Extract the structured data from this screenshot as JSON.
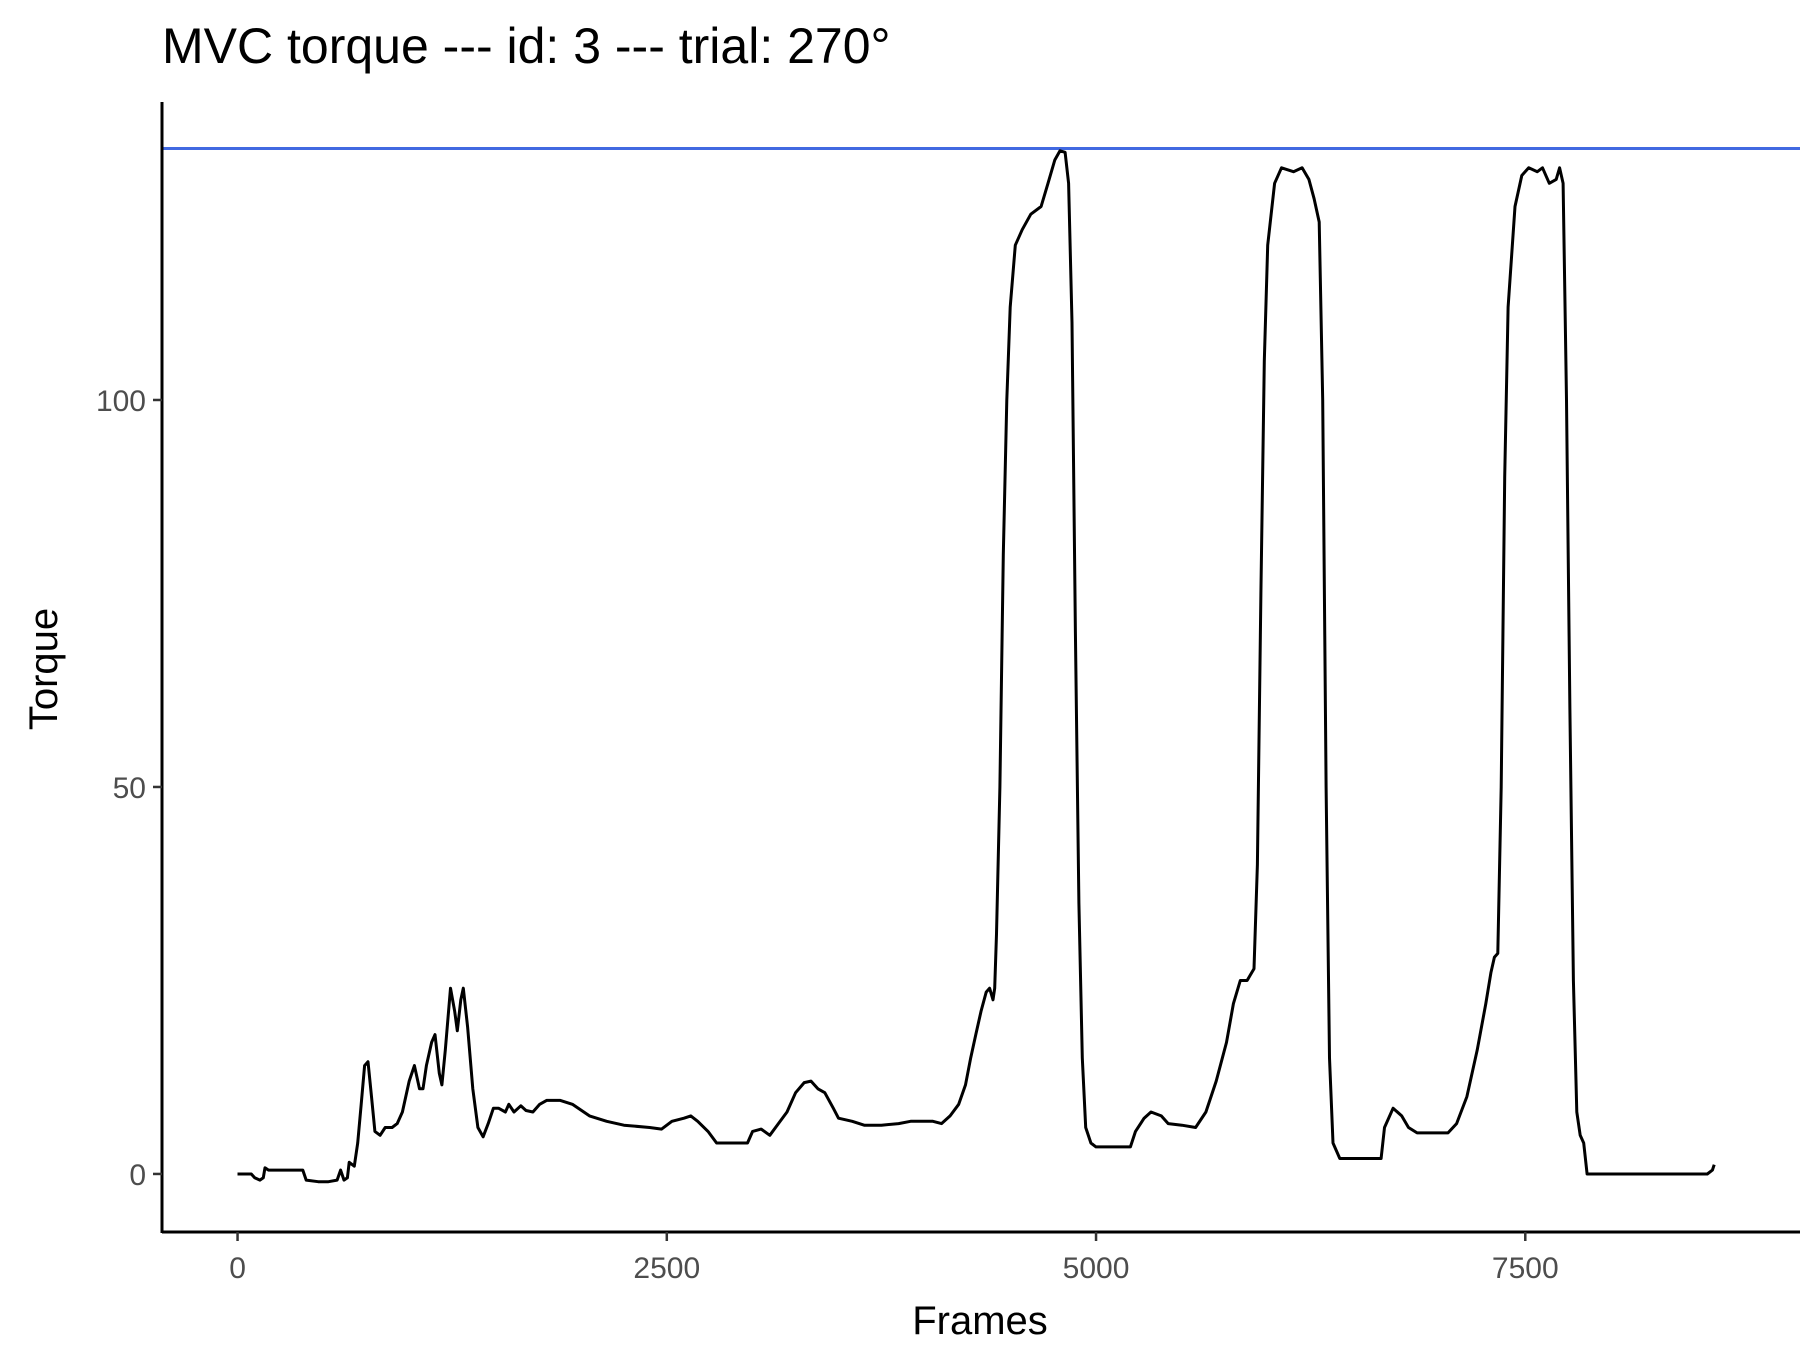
{
  "chart_data": {
    "type": "line",
    "title": "MVC torque --- id: 3 --- trial: 270°",
    "xlabel": "Frames",
    "ylabel": "Torque",
    "xlim": [
      -440,
      9100
    ],
    "ylim": [
      -7.5,
      138.5
    ],
    "x_ticks": [
      0,
      2500,
      5000,
      7500
    ],
    "y_ticks": [
      0,
      50,
      100
    ],
    "grid": false,
    "legend": "none",
    "reference_line": {
      "y": 132.5,
      "color": "#4169E1"
    },
    "series": [
      {
        "color": "#000000",
        "points": [
          [
            0,
            0
          ],
          [
            80,
            0
          ],
          [
            100,
            -0.5
          ],
          [
            130,
            -0.8
          ],
          [
            150,
            -0.5
          ],
          [
            160,
            0.8
          ],
          [
            180,
            0.5
          ],
          [
            230,
            0.5
          ],
          [
            300,
            0.5
          ],
          [
            380,
            0.5
          ],
          [
            400,
            -0.8
          ],
          [
            470,
            -1.0
          ],
          [
            530,
            -1.0
          ],
          [
            580,
            -0.8
          ],
          [
            600,
            0.5
          ],
          [
            620,
            -0.8
          ],
          [
            640,
            -0.5
          ],
          [
            650,
            1.5
          ],
          [
            680,
            1.0
          ],
          [
            700,
            4.0
          ],
          [
            720,
            9.0
          ],
          [
            740,
            14.0
          ],
          [
            760,
            14.5
          ],
          [
            780,
            10.0
          ],
          [
            800,
            5.5
          ],
          [
            830,
            5.0
          ],
          [
            860,
            6.0
          ],
          [
            900,
            6.0
          ],
          [
            930,
            6.5
          ],
          [
            960,
            8.0
          ],
          [
            1000,
            12.0
          ],
          [
            1030,
            14.0
          ],
          [
            1060,
            11.0
          ],
          [
            1080,
            11.0
          ],
          [
            1100,
            14.0
          ],
          [
            1130,
            17.0
          ],
          [
            1150,
            18.0
          ],
          [
            1175,
            13.0
          ],
          [
            1190,
            11.5
          ],
          [
            1210,
            16.0
          ],
          [
            1240,
            24.0
          ],
          [
            1265,
            21.0
          ],
          [
            1280,
            18.5
          ],
          [
            1300,
            22.5
          ],
          [
            1315,
            24.0
          ],
          [
            1340,
            19.0
          ],
          [
            1370,
            11.0
          ],
          [
            1400,
            6.0
          ],
          [
            1430,
            4.8
          ],
          [
            1460,
            6.5
          ],
          [
            1490,
            8.5
          ],
          [
            1520,
            8.5
          ],
          [
            1560,
            8.0
          ],
          [
            1580,
            9.0
          ],
          [
            1610,
            8.0
          ],
          [
            1650,
            8.8
          ],
          [
            1680,
            8.2
          ],
          [
            1720,
            8.0
          ],
          [
            1760,
            9.0
          ],
          [
            1800,
            9.5
          ],
          [
            1880,
            9.5
          ],
          [
            1950,
            9.0
          ],
          [
            2050,
            7.5
          ],
          [
            2150,
            6.8
          ],
          [
            2250,
            6.3
          ],
          [
            2400,
            6.0
          ],
          [
            2470,
            5.8
          ],
          [
            2530,
            6.8
          ],
          [
            2600,
            7.2
          ],
          [
            2640,
            7.5
          ],
          [
            2680,
            6.8
          ],
          [
            2740,
            5.5
          ],
          [
            2790,
            4.0
          ],
          [
            2850,
            4.0
          ],
          [
            2920,
            4.0
          ],
          [
            2970,
            4.0
          ],
          [
            3000,
            5.5
          ],
          [
            3050,
            5.8
          ],
          [
            3100,
            5.0
          ],
          [
            3150,
            6.5
          ],
          [
            3200,
            8.0
          ],
          [
            3250,
            10.5
          ],
          [
            3300,
            11.8
          ],
          [
            3340,
            12.0
          ],
          [
            3380,
            11.0
          ],
          [
            3420,
            10.5
          ],
          [
            3470,
            8.5
          ],
          [
            3500,
            7.2
          ],
          [
            3580,
            6.8
          ],
          [
            3650,
            6.3
          ],
          [
            3750,
            6.3
          ],
          [
            3850,
            6.5
          ],
          [
            3920,
            6.8
          ],
          [
            3980,
            6.8
          ],
          [
            4050,
            6.8
          ],
          [
            4100,
            6.5
          ],
          [
            4150,
            7.5
          ],
          [
            4200,
            9.0
          ],
          [
            4240,
            11.5
          ],
          [
            4270,
            15.0
          ],
          [
            4300,
            18.0
          ],
          [
            4330,
            21.0
          ],
          [
            4360,
            23.5
          ],
          [
            4380,
            24.0
          ],
          [
            4400,
            22.5
          ],
          [
            4410,
            24.0
          ],
          [
            4420,
            31.0
          ],
          [
            4440,
            50.0
          ],
          [
            4460,
            80.0
          ],
          [
            4480,
            100.0
          ],
          [
            4500,
            112.0
          ],
          [
            4530,
            120.0
          ],
          [
            4570,
            122.0
          ],
          [
            4620,
            124.0
          ],
          [
            4680,
            125.0
          ],
          [
            4720,
            128.0
          ],
          [
            4760,
            131.0
          ],
          [
            4790,
            132.2
          ],
          [
            4820,
            132.0
          ],
          [
            4840,
            128.0
          ],
          [
            4860,
            110.0
          ],
          [
            4880,
            70.0
          ],
          [
            4900,
            35.0
          ],
          [
            4920,
            15.0
          ],
          [
            4940,
            6.0
          ],
          [
            4970,
            4.0
          ],
          [
            5000,
            3.5
          ],
          [
            5100,
            3.5
          ],
          [
            5200,
            3.5
          ],
          [
            5230,
            5.5
          ],
          [
            5280,
            7.2
          ],
          [
            5320,
            8.0
          ],
          [
            5380,
            7.5
          ],
          [
            5420,
            6.5
          ],
          [
            5500,
            6.3
          ],
          [
            5580,
            6.0
          ],
          [
            5640,
            8.0
          ],
          [
            5700,
            12.0
          ],
          [
            5760,
            17.0
          ],
          [
            5800,
            22.0
          ],
          [
            5840,
            25.0
          ],
          [
            5880,
            25.0
          ],
          [
            5920,
            26.5
          ],
          [
            5940,
            40.0
          ],
          [
            5960,
            75.0
          ],
          [
            5980,
            105.0
          ],
          [
            6000,
            120.0
          ],
          [
            6040,
            128.0
          ],
          [
            6080,
            130.0
          ],
          [
            6150,
            129.5
          ],
          [
            6200,
            130.0
          ],
          [
            6240,
            128.5
          ],
          [
            6270,
            126.0
          ],
          [
            6300,
            123.0
          ],
          [
            6320,
            100.0
          ],
          [
            6340,
            50.0
          ],
          [
            6360,
            15.0
          ],
          [
            6380,
            4.0
          ],
          [
            6420,
            2.0
          ],
          [
            6500,
            2.0
          ],
          [
            6600,
            2.0
          ],
          [
            6660,
            2.0
          ],
          [
            6680,
            6.0
          ],
          [
            6730,
            8.5
          ],
          [
            6780,
            7.5
          ],
          [
            6820,
            6.0
          ],
          [
            6870,
            5.3
          ],
          [
            6950,
            5.3
          ],
          [
            7050,
            5.3
          ],
          [
            7100,
            6.5
          ],
          [
            7160,
            10.0
          ],
          [
            7220,
            16.0
          ],
          [
            7270,
            22.0
          ],
          [
            7300,
            26.0
          ],
          [
            7320,
            28.0
          ],
          [
            7340,
            28.5
          ],
          [
            7360,
            50.0
          ],
          [
            7380,
            90.0
          ],
          [
            7400,
            112.0
          ],
          [
            7440,
            125.0
          ],
          [
            7480,
            129.0
          ],
          [
            7520,
            130.0
          ],
          [
            7570,
            129.5
          ],
          [
            7600,
            130.0
          ],
          [
            7640,
            128.0
          ],
          [
            7680,
            128.5
          ],
          [
            7700,
            130.0
          ],
          [
            7720,
            128.0
          ],
          [
            7740,
            100.0
          ],
          [
            7760,
            60.0
          ],
          [
            7780,
            25.0
          ],
          [
            7800,
            8.0
          ],
          [
            7820,
            5.0
          ],
          [
            7840,
            4.0
          ],
          [
            7860,
            0.0
          ],
          [
            7950,
            0.0
          ],
          [
            8100,
            0.0
          ],
          [
            8300,
            0.0
          ],
          [
            8500,
            0.0
          ],
          [
            8560,
            0.0
          ],
          [
            8590,
            0.5
          ],
          [
            8600,
            1.2
          ]
        ]
      }
    ]
  }
}
